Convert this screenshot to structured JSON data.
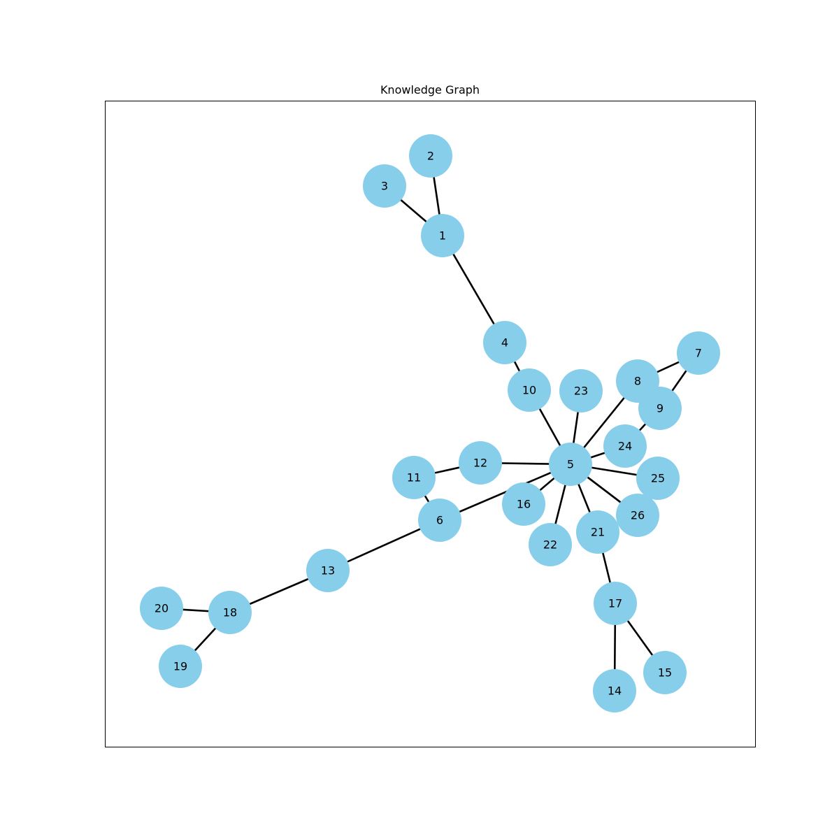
{
  "title": "Knowledge Graph",
  "node_color": "#87ceeb",
  "edge_color": "#000000",
  "nodes": [
    {
      "id": "1"
    },
    {
      "id": "2"
    },
    {
      "id": "3"
    },
    {
      "id": "4"
    },
    {
      "id": "5"
    },
    {
      "id": "6"
    },
    {
      "id": "7"
    },
    {
      "id": "8"
    },
    {
      "id": "9"
    },
    {
      "id": "10"
    },
    {
      "id": "11"
    },
    {
      "id": "12"
    },
    {
      "id": "13"
    },
    {
      "id": "14"
    },
    {
      "id": "15"
    },
    {
      "id": "16"
    },
    {
      "id": "17"
    },
    {
      "id": "18"
    },
    {
      "id": "19"
    },
    {
      "id": "20"
    },
    {
      "id": "21"
    },
    {
      "id": "22"
    },
    {
      "id": "23"
    },
    {
      "id": "24"
    },
    {
      "id": "25"
    },
    {
      "id": "26"
    }
  ],
  "edges": [
    [
      "1",
      "2"
    ],
    [
      "1",
      "3"
    ],
    [
      "1",
      "4"
    ],
    [
      "4",
      "10"
    ],
    [
      "10",
      "5"
    ],
    [
      "5",
      "23"
    ],
    [
      "5",
      "8"
    ],
    [
      "8",
      "7"
    ],
    [
      "7",
      "9"
    ],
    [
      "9",
      "24"
    ],
    [
      "24",
      "5"
    ],
    [
      "5",
      "25"
    ],
    [
      "5",
      "26"
    ],
    [
      "5",
      "21"
    ],
    [
      "21",
      "17"
    ],
    [
      "17",
      "14"
    ],
    [
      "17",
      "15"
    ],
    [
      "5",
      "22"
    ],
    [
      "5",
      "16"
    ],
    [
      "5",
      "12"
    ],
    [
      "12",
      "11"
    ],
    [
      "11",
      "6"
    ],
    [
      "6",
      "5"
    ],
    [
      "6",
      "13"
    ],
    [
      "13",
      "18"
    ],
    [
      "18",
      "20"
    ],
    [
      "18",
      "19"
    ],
    [
      "5",
      "26"
    ]
  ]
}
